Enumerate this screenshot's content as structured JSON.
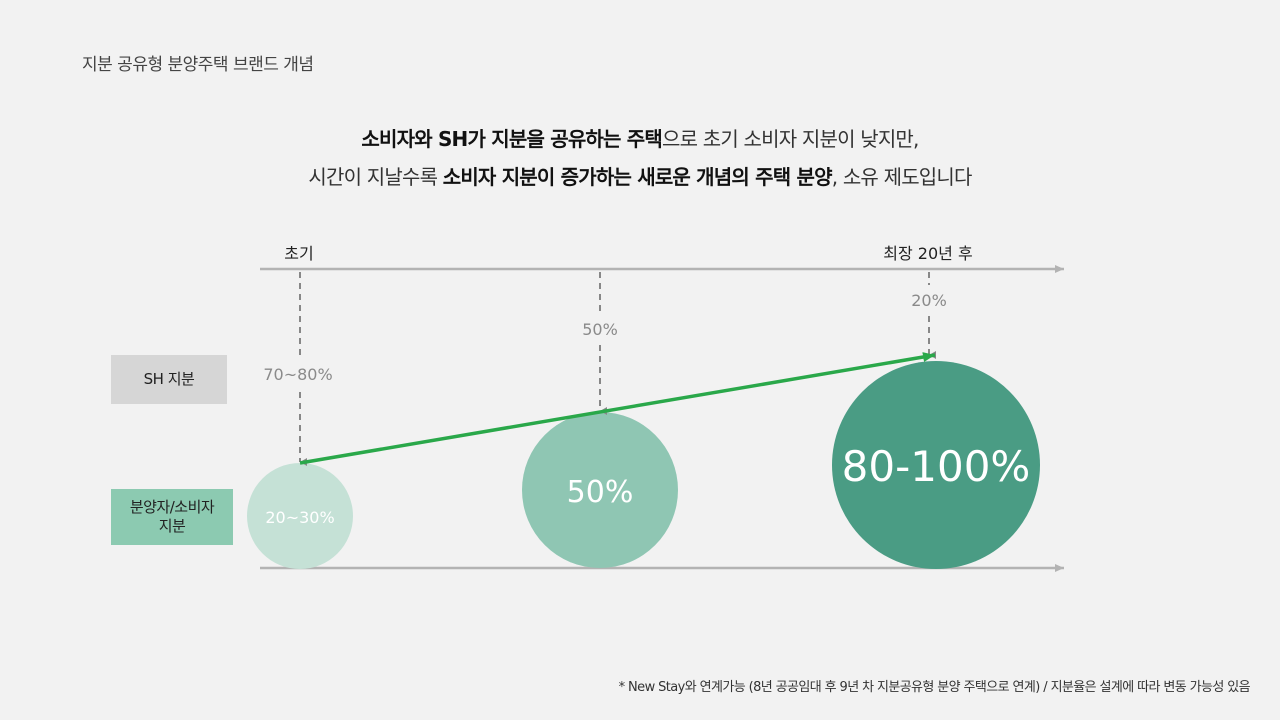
{
  "page": {
    "title": "지분 공유형 분양주택 브랜드 개념",
    "headline": {
      "line1": [
        {
          "text": "소비자와 SH가 지분을 공유하는 주택",
          "bold": true
        },
        {
          "text": "으로 초기 소비자 지분이 낮지만,",
          "bold": false
        }
      ],
      "line2": [
        {
          "text": "시간이 지날수록 ",
          "bold": false
        },
        {
          "text": "소비자 지분이 증가하는 새로운 개념의 주택 분양",
          "bold": true
        },
        {
          "text": ", 소유 제도입니다",
          "bold": false
        }
      ]
    },
    "footnote": "* New Stay와 연계가능 (8년 공공임대 후 9년 차 지분공유형 분양 주택으로 연계) / 지분율은 설계에 따라 변동 가능성 있음"
  },
  "diagram": {
    "timeline": {
      "start_label": "초기",
      "end_label": "최장 20년 후"
    },
    "row_labels": {
      "sh": "SH 지분",
      "owner": "분양자/소비자\n지분"
    },
    "stages": [
      {
        "sh_share": "70~80%",
        "owner_share": "20~30%",
        "circle_color": "#c5e1d6",
        "text_color": "#ffffff"
      },
      {
        "sh_share": "50%",
        "owner_share": "50%",
        "circle_color": "#8fc6b3",
        "text_color": "#ffffff"
      },
      {
        "sh_share": "20%",
        "owner_share": "80-100%",
        "circle_color": "#4a9c84",
        "text_color": "#ffffff"
      }
    ],
    "colors": {
      "axis": "#b3b3b3",
      "dashed": "#888888",
      "trend_arrow": "#2aa84a",
      "share_text": "#8a8a8a"
    }
  }
}
